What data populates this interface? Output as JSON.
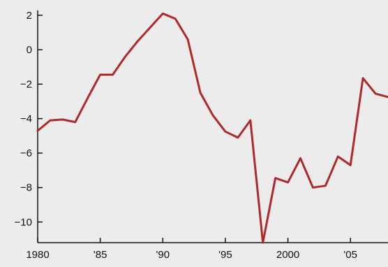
{
  "chart_data": {
    "type": "line",
    "x_tick_labels": [
      "1980",
      "'85",
      "'90",
      "'95",
      "2000",
      "'05"
    ],
    "x_tick_values": [
      1980,
      1985,
      1990,
      1995,
      2000,
      2005
    ],
    "y_tick_labels": [
      "2",
      "0",
      "−2",
      "−4",
      "−6",
      "−8",
      "−10"
    ],
    "y_tick_values": [
      2,
      0,
      -2,
      -4,
      -6,
      -8,
      -10
    ],
    "xlim": [
      1980,
      2008
    ],
    "ylim": [
      -11.2,
      2.2
    ],
    "grid": false,
    "colors": {
      "line": "#b0282a",
      "axis": "#111111",
      "background": "#ececec"
    },
    "series": [
      {
        "x": [
          1980,
          1981,
          1982,
          1983,
          1984,
          1985,
          1986,
          1987,
          1988,
          1989,
          1990,
          1991,
          1992,
          1993,
          1994,
          1995,
          1996,
          1997,
          1998,
          1999,
          2000,
          2001,
          2002,
          2003,
          2004,
          2005,
          2006,
          2007,
          2008
        ],
        "y": [
          -4.7,
          -4.1,
          -4.05,
          -4.2,
          -2.8,
          -1.45,
          -1.45,
          -0.4,
          0.5,
          1.3,
          2.1,
          1.8,
          0.6,
          -2.5,
          -3.8,
          -4.75,
          -5.1,
          -4.1,
          -11.2,
          -7.45,
          -7.7,
          -6.3,
          -8.0,
          -7.9,
          -6.2,
          -6.7,
          -1.65,
          -2.55,
          -2.75
        ]
      }
    ]
  }
}
